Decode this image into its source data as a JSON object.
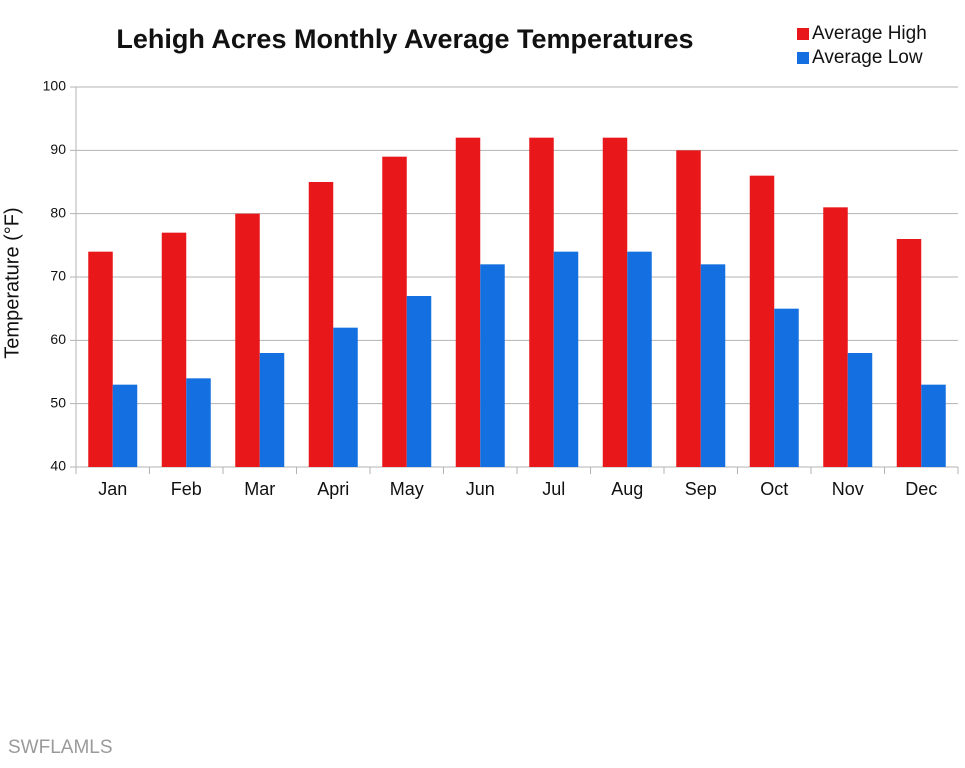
{
  "chart_data": {
    "type": "bar",
    "title": "Lehigh Acres Monthly Average Temperatures",
    "y_label": "Temperature (°F)",
    "categories": [
      "Jan",
      "Feb",
      "Mar",
      "Apri",
      "May",
      "Jun",
      "Jul",
      "Aug",
      "Sep",
      "Oct",
      "Nov",
      "Dec"
    ],
    "series": [
      {
        "name": "Average High",
        "color": "#e8171a",
        "values": [
          74,
          77,
          80,
          85,
          89,
          92,
          92,
          92,
          90,
          86,
          81,
          76
        ]
      },
      {
        "name": "Average Low",
        "color": "#1470e0",
        "values": [
          53,
          54,
          58,
          62,
          67,
          72,
          74,
          74,
          72,
          65,
          58,
          53
        ]
      }
    ],
    "ylim": [
      40,
      100
    ],
    "yticks": [
      40,
      50,
      60,
      70,
      80,
      90,
      100
    ],
    "grid": true,
    "legend": "top-right"
  },
  "watermark": "SWFLAMLS"
}
